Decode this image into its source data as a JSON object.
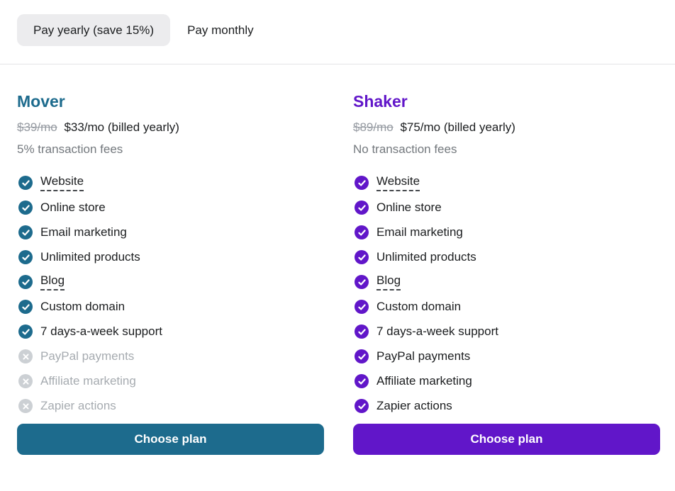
{
  "billing_toggle": {
    "yearly_label": "Pay yearly (save 15%)",
    "monthly_label": "Pay monthly",
    "selected": "yearly"
  },
  "colors": {
    "mover_accent": "#1d6b8d",
    "shaker_accent": "#6116c9",
    "excluded_icon": "#ccd0d4",
    "excluded_text": "#a6abb0",
    "pill_background": "#ececee"
  },
  "plans": [
    {
      "name": "Mover",
      "accent_color": "#1d6b8d",
      "original_price": "$39/mo",
      "price": "$33/mo (billed yearly)",
      "fees_note": "5% transaction fees",
      "choose_label": "Choose plan",
      "features": [
        {
          "label": "Website",
          "included": true,
          "tooltip_underline": true
        },
        {
          "label": "Online store",
          "included": true
        },
        {
          "label": "Email marketing",
          "included": true
        },
        {
          "label": "Unlimited products",
          "included": true
        },
        {
          "label": "Blog",
          "included": true,
          "tooltip_underline": true
        },
        {
          "label": "Custom domain",
          "included": true
        },
        {
          "label": "7 days-a-week support",
          "included": true
        },
        {
          "label": "PayPal payments",
          "included": false
        },
        {
          "label": "Affiliate marketing",
          "included": false
        },
        {
          "label": "Zapier actions",
          "included": false
        }
      ]
    },
    {
      "name": "Shaker",
      "accent_color": "#6116c9",
      "original_price": "$89/mo",
      "price": "$75/mo (billed yearly)",
      "fees_note": "No transaction fees",
      "choose_label": "Choose plan",
      "features": [
        {
          "label": "Website",
          "included": true,
          "tooltip_underline": true
        },
        {
          "label": "Online store",
          "included": true
        },
        {
          "label": "Email marketing",
          "included": true
        },
        {
          "label": "Unlimited products",
          "included": true
        },
        {
          "label": "Blog",
          "included": true,
          "tooltip_underline": true
        },
        {
          "label": "Custom domain",
          "included": true
        },
        {
          "label": "7 days-a-week support",
          "included": true
        },
        {
          "label": "PayPal payments",
          "included": true
        },
        {
          "label": "Affiliate marketing",
          "included": true
        },
        {
          "label": "Zapier actions",
          "included": true
        }
      ]
    }
  ]
}
